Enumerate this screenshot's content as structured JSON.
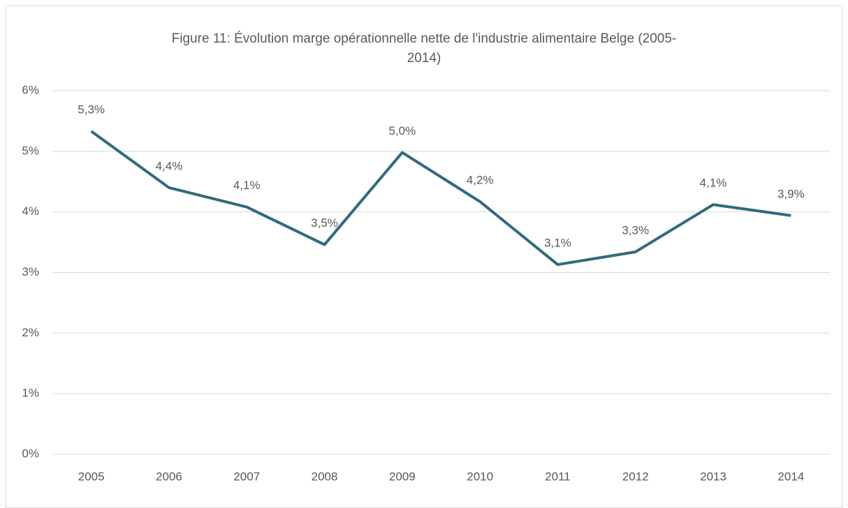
{
  "chart_data": {
    "type": "line",
    "title": "Figure 11: Évolution marge opérationnelle nette de l'industrie alimentaire Belge (2005-2014)",
    "categories": [
      "2005",
      "2006",
      "2007",
      "2008",
      "2009",
      "2010",
      "2011",
      "2012",
      "2013",
      "2014"
    ],
    "series": [
      {
        "name": "Marge opérationnelle nette",
        "color": "#2f6b7c",
        "values": [
          5.33,
          4.4,
          4.08,
          3.46,
          4.98,
          4.17,
          3.13,
          3.34,
          4.12,
          3.94
        ],
        "value_labels": [
          "5,3%",
          "4,4%",
          "4,1%",
          "3,5%",
          "5,0%",
          "4,2%",
          "3,1%",
          "3,3%",
          "4,1%",
          "3,9%"
        ]
      }
    ],
    "ylim": [
      0,
      6
    ],
    "yticks": [
      {
        "value": 0,
        "label": "0%"
      },
      {
        "value": 1,
        "label": "1%"
      },
      {
        "value": 2,
        "label": "2%"
      },
      {
        "value": 3,
        "label": "3%"
      },
      {
        "value": 4,
        "label": "4%"
      },
      {
        "value": 5,
        "label": "5%"
      },
      {
        "value": 6,
        "label": "6%"
      }
    ],
    "grid": true
  }
}
